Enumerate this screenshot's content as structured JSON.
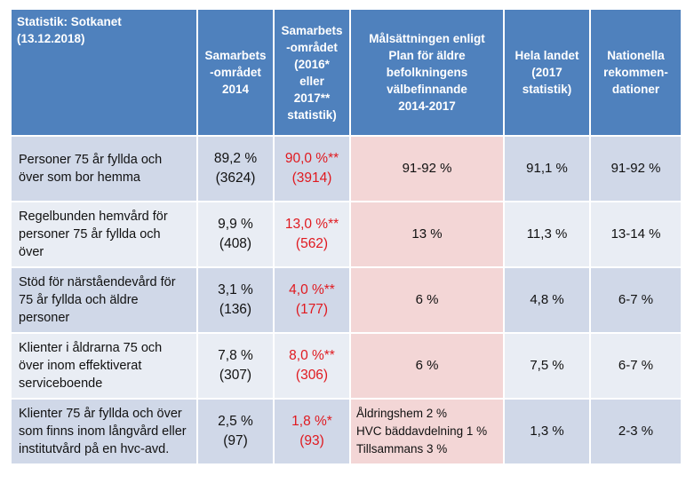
{
  "headers": {
    "col1": [
      "Statistik: Sotkanet",
      "(13.12.2018)"
    ],
    "col2": [
      "Samarbets",
      "-området",
      "2014"
    ],
    "col3": [
      "Samarbets",
      "-området",
      "(2016*",
      "eller",
      "2017**",
      "statistik)"
    ],
    "col4": [
      "Målsättningen enligt",
      "Plan för äldre",
      "befolkningens",
      "välbefinnande",
      "2014-2017"
    ],
    "col5": [
      "Hela landet",
      "(2017",
      "statistik)"
    ],
    "col6": [
      "Nationella",
      "rekommen-",
      "dationer"
    ]
  },
  "rows": [
    {
      "label": [
        "Personer 75 år fyllda och",
        "över som bor hemma"
      ],
      "area2014": [
        "89,2 %",
        "(3624)"
      ],
      "areaLatest": [
        "90,0 %**",
        "(3914)"
      ],
      "goal": [
        "91-92 %"
      ],
      "country": "91,1 %",
      "national": "91-92 %"
    },
    {
      "label": [
        "Regelbunden hemvård för",
        "personer 75 år fyllda och",
        "över"
      ],
      "area2014": [
        "9,9 %",
        "(408)"
      ],
      "areaLatest": [
        "13,0 %**",
        "(562)"
      ],
      "goal": [
        "13 %"
      ],
      "country": "11,3 %",
      "national": "13-14 %"
    },
    {
      "label": [
        "Stöd för närståendevård för",
        "75 år fyllda och äldre",
        "personer"
      ],
      "area2014": [
        "3,1 %",
        "(136)"
      ],
      "areaLatest": [
        "4,0 %**",
        "(177)"
      ],
      "goal": [
        "6 %"
      ],
      "country": "4,8 %",
      "national": "6-7 %"
    },
    {
      "label": [
        "Klienter i åldrarna 75 och",
        "över inom effektiverat",
        "serviceboende"
      ],
      "area2014": [
        "7,8 %",
        "(307)"
      ],
      "areaLatest": [
        "8,0 %**",
        "(306)"
      ],
      "goal": [
        "6 %"
      ],
      "country": "7,5 %",
      "national": "6-7 %"
    },
    {
      "label": [
        "Klienter 75 år fyllda och över",
        "som finns inom långvård eller",
        "institutvård på en hvc-avd."
      ],
      "area2014": [
        "2,5 %",
        "(97)"
      ],
      "areaLatest": [
        "1,8 %*",
        "(93)"
      ],
      "goal": [
        "Åldringshem 2 %",
        "HVC bäddavdelning 1 %",
        "Tillsammans 3 %"
      ],
      "country": "1,3 %",
      "national": "2-3 %"
    }
  ],
  "colors": {
    "header": "#4f81bd",
    "rowDark": "#d0d8e8",
    "rowLight": "#e9edf4",
    "goalCell": "#f3d6d6",
    "highlightText": "#e0191f"
  }
}
